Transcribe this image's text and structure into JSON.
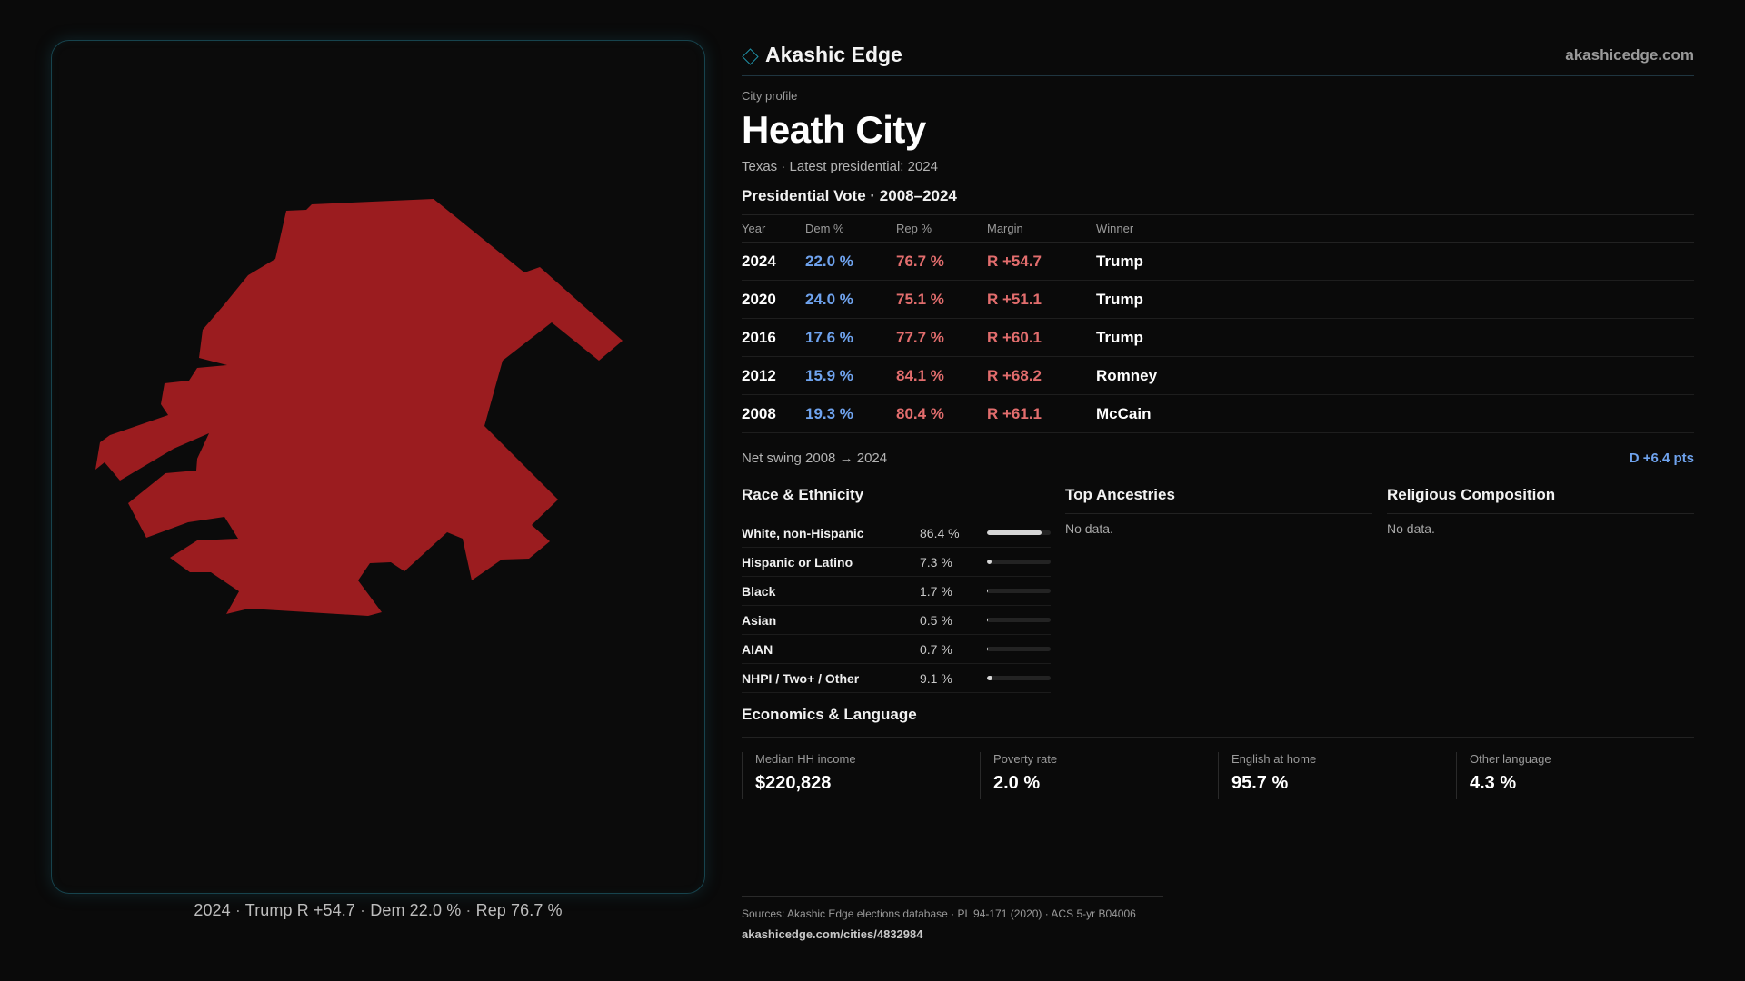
{
  "map": {
    "fill_color": "#9b1c1f",
    "caption": {
      "year": "2024",
      "winner_margin": "Trump R +54.7",
      "dem": "Dem 22.0 %",
      "rep": "Rep 76.7 %"
    }
  },
  "header": {
    "brand_name": "Akashic Edge",
    "brand_url": "akashicedge.com"
  },
  "profile": {
    "eyebrow": "City profile",
    "city": "Heath City",
    "state": "Texas",
    "latest": "Latest presidential: 2024"
  },
  "vote": {
    "title": "Presidential Vote",
    "range": "2008–2024",
    "columns": [
      "Year",
      "Dem %",
      "Rep %",
      "Margin",
      "Winner"
    ],
    "rows": [
      {
        "year": "2024",
        "dem": "22.0 %",
        "rep": "76.7 %",
        "margin": "R +54.7",
        "winner": "Trump"
      },
      {
        "year": "2020",
        "dem": "24.0 %",
        "rep": "75.1 %",
        "margin": "R +51.1",
        "winner": "Trump"
      },
      {
        "year": "2016",
        "dem": "17.6 %",
        "rep": "77.7 %",
        "margin": "R +60.1",
        "winner": "Trump"
      },
      {
        "year": "2012",
        "dem": "15.9 %",
        "rep": "84.1 %",
        "margin": "R +68.2",
        "winner": "Romney"
      },
      {
        "year": "2008",
        "dem": "19.3 %",
        "rep": "80.4 %",
        "margin": "R +61.1",
        "winner": "McCain"
      }
    ],
    "swing_label": "Net swing 2008 → 2024",
    "swing_value": "D +6.4 pts"
  },
  "race": {
    "title": "Race & Ethnicity",
    "rows": [
      {
        "label": "White, non-Hispanic",
        "value": "86.4 %",
        "pct": 86.4
      },
      {
        "label": "Hispanic or Latino",
        "value": "7.3 %",
        "pct": 7.3
      },
      {
        "label": "Black",
        "value": "1.7 %",
        "pct": 1.7
      },
      {
        "label": "Asian",
        "value": "0.5 %",
        "pct": 0.5
      },
      {
        "label": "AIAN",
        "value": "0.7 %",
        "pct": 0.7
      },
      {
        "label": "NHPI / Two+ / Other",
        "value": "9.1 %",
        "pct": 9.1
      }
    ]
  },
  "ancestries": {
    "title": "Top Ancestries",
    "empty": "No data."
  },
  "religion": {
    "title": "Religious Composition",
    "empty": "No data."
  },
  "economics": {
    "title": "Economics & Language",
    "cards": [
      {
        "label": "Median HH income",
        "value": "$220,828"
      },
      {
        "label": "Poverty rate",
        "value": "2.0 %"
      },
      {
        "label": "English at home",
        "value": "95.7 %"
      },
      {
        "label": "Other language",
        "value": "4.3 %"
      }
    ]
  },
  "footer": {
    "sources": "Sources: Akashic Edge elections database · PL 94-171 (2020) · ACS 5-yr B04006",
    "url": "akashicedge.com/cities/4832984"
  }
}
